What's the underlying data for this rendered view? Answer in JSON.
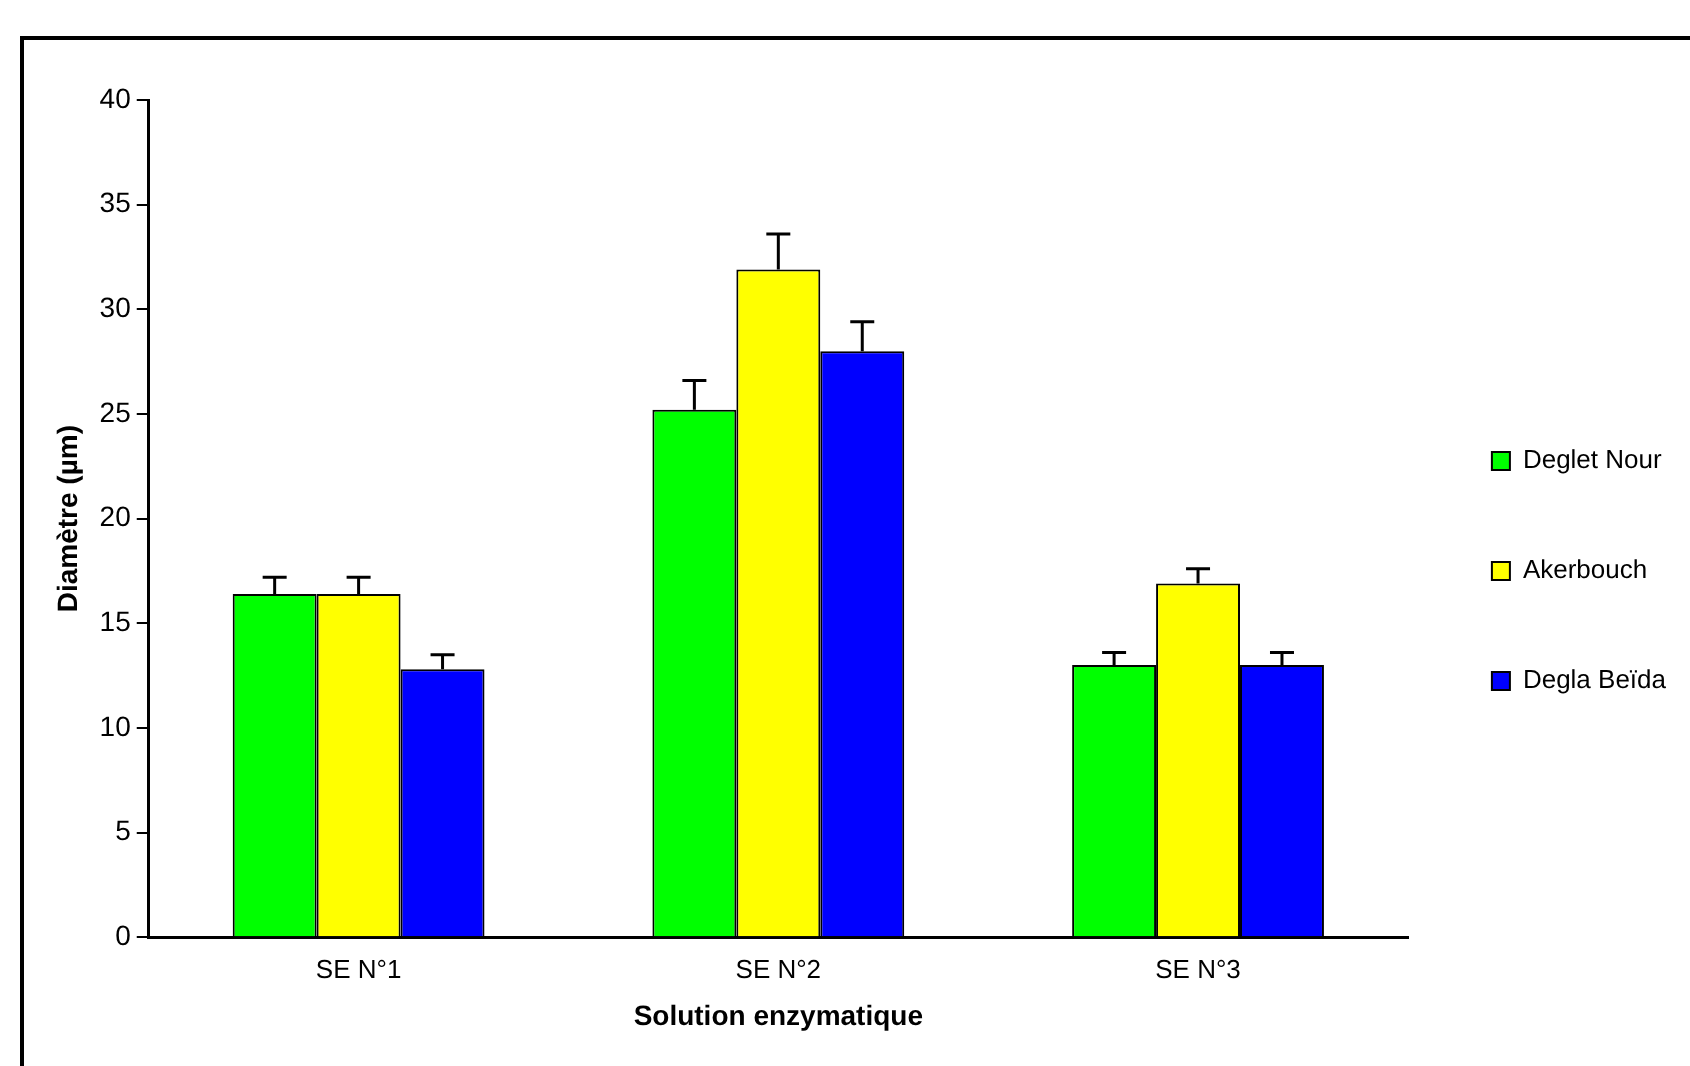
{
  "chart_data": {
    "type": "bar",
    "xlabel": "Solution enzymatique",
    "ylabel": "Diamètre (µm)",
    "categories": [
      "SE N°1",
      "SE N°2",
      "SE N°3"
    ],
    "series": [
      {
        "name": "Deglet Nour",
        "color": "#00ff00",
        "values": [
          16.4,
          25.2,
          13.0
        ],
        "errors": [
          0.8,
          1.4,
          0.6
        ]
      },
      {
        "name": "Akerbouch",
        "color": "#ffff00",
        "values": [
          16.4,
          31.9,
          16.9
        ],
        "errors": [
          0.8,
          1.7,
          0.7
        ]
      },
      {
        "name": "Degla Beïda",
        "color": "#0000ff",
        "values": [
          12.8,
          28.0,
          13.0
        ],
        "errors": [
          0.7,
          1.4,
          0.6
        ]
      }
    ],
    "ylim": [
      0,
      40
    ],
    "yticks": [
      0,
      5,
      10,
      15,
      20,
      25,
      30,
      35,
      40
    ],
    "grid": false,
    "legend": "right"
  }
}
